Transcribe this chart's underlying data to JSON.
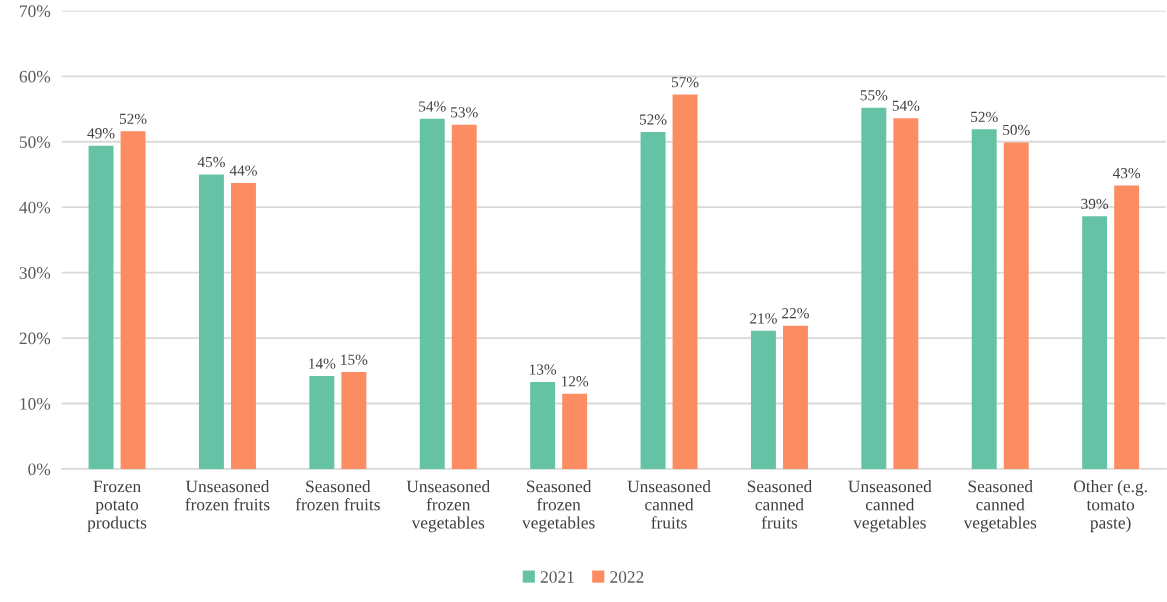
{
  "chart_data": {
    "type": "bar",
    "categories": [
      "Frozen\npotato\nproducts",
      "Unseasoned\nfrozen fruits",
      "Seasoned\nfrozen fruits",
      "Unseasoned\nfrozen\nvegetables",
      "Seasoned\nfrozen\nvegetables",
      "Unseasoned\ncanned\nfruits",
      "Seasoned\ncanned\nfruits",
      "Unseasoned\ncanned\nvegetables",
      "Seasoned\ncanned\nvegetables",
      "Other (e.g.\ntomato\npaste)"
    ],
    "series": [
      {
        "name": "2021",
        "color": "#66c2a5",
        "values": [
          49.4,
          45.0,
          14.2,
          53.5,
          13.3,
          51.5,
          21.1,
          55.2,
          51.9,
          38.6
        ],
        "value_labels": [
          "49%",
          "45%",
          "14%",
          "54%",
          "13%",
          "52%",
          "21%",
          "55%",
          "52%",
          "39%"
        ]
      },
      {
        "name": "2022",
        "color": "#fc8d62",
        "values": [
          51.6,
          43.7,
          14.8,
          52.6,
          11.5,
          57.2,
          21.9,
          53.6,
          49.9,
          43.3
        ],
        "value_labels": [
          "52%",
          "44%",
          "15%",
          "53%",
          "12%",
          "57%",
          "22%",
          "54%",
          "50%",
          "43%"
        ]
      }
    ],
    "ylim": [
      0,
      70
    ],
    "yticks": [
      {
        "value": 0,
        "label": "0%"
      },
      {
        "value": 10,
        "label": "10%"
      },
      {
        "value": 20,
        "label": "20%"
      },
      {
        "value": 30,
        "label": "30%"
      },
      {
        "value": 40,
        "label": "40%"
      },
      {
        "value": 50,
        "label": "50%"
      },
      {
        "value": 60,
        "label": "60%"
      },
      {
        "value": 70,
        "label": "70%"
      }
    ],
    "grid": "y",
    "legend": "bottom"
  }
}
